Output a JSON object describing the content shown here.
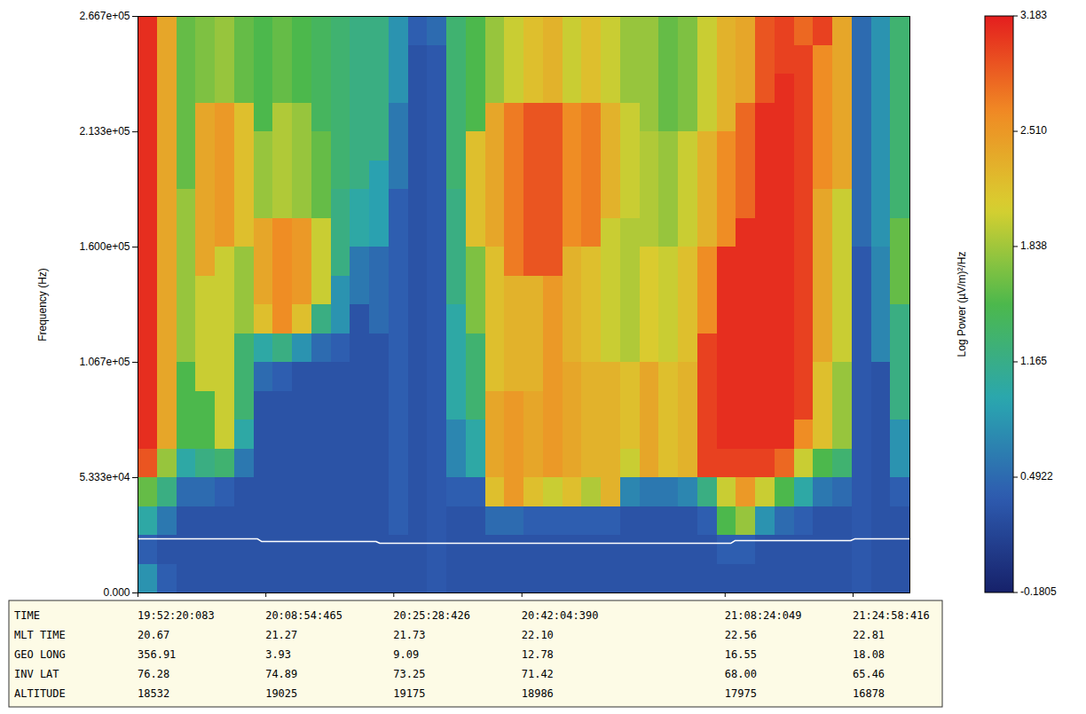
{
  "chart_data": {
    "type": "heatmap",
    "xlabel": "TIME",
    "ylabel": "Frequency (Hz)",
    "xlim": [
      71540.083,
      77540.083
    ],
    "xticks": [
      {
        "value": 71540.083,
        "label": "19:52:20:083"
      },
      {
        "value": 72534.465,
        "label": "20:08:54:465"
      },
      {
        "value": 73528.426,
        "label": "20:25:28:426"
      },
      {
        "value": 74524.39,
        "label": "20:42:04:390"
      },
      {
        "value": 76104.049,
        "label": "21:08:24:049"
      },
      {
        "value": 77098.416,
        "label": "21:24:58:416"
      }
    ],
    "xtick_rows": [
      {
        "label": "MLT TIME",
        "labels": [
          "20.67",
          "21.27",
          "21.73",
          "22.10",
          "22.56",
          "22.81"
        ]
      },
      {
        "label": "GEO LONG",
        "labels": [
          "356.91",
          "3.93",
          "9.09",
          "12.78",
          "16.55",
          "18.08"
        ]
      },
      {
        "label": "INV LAT",
        "labels": [
          "76.28",
          "74.89",
          "73.25",
          "71.42",
          "68.00",
          "65.46"
        ]
      },
      {
        "label": "ALTITUDE",
        "labels": [
          "18532",
          "19025",
          "19175",
          "18986",
          "17975",
          "16878"
        ]
      }
    ],
    "ylim": [
      0,
      266700
    ],
    "yticks": [
      {
        "value": 0,
        "label": "0.000"
      },
      {
        "value": 53330,
        "label": "5.333e+04"
      },
      {
        "value": 106700,
        "label": "1.067e+05"
      },
      {
        "value": 160000,
        "label": "1.600e+05"
      },
      {
        "value": 213300,
        "label": "2.133e+05"
      },
      {
        "value": 266700,
        "label": "2.667e+05"
      }
    ],
    "colorbar": {
      "label": "Log Power (µV/m)²/Hz",
      "range": [
        -0.1805,
        3.183
      ],
      "ticks": [
        3.183,
        {
          "value": 2.51,
          "label": "2.510"
        },
        1.838,
        1.165,
        0.4922,
        -0.1805
      ]
    },
    "line": {
      "x": [
        71540.083,
        72470,
        72500,
        73390,
        73420,
        76150,
        76180,
        77080,
        77110,
        77540.083
      ],
      "values": [
        25000,
        25000,
        23800,
        23800,
        23000,
        23000,
        24200,
        24200,
        25000,
        25000
      ],
      "color": "#ffffff"
    },
    "cells": {
      "x_bins": [
        71540.083,
        71690.083,
        71840.083,
        71990.083,
        72140.083,
        72290.083,
        72440.083,
        72590.083,
        72740.083,
        72890.083,
        73040.083,
        73190.083,
        73340.083,
        73490.083,
        73640.083,
        73790.083,
        73940.083,
        74090.083,
        74240.083,
        74390.083,
        74540.083,
        74690.083,
        74840.083,
        74990.083,
        75140.083,
        75290.083,
        75440.083,
        75590.083,
        75740.083,
        75890.083,
        76040.083,
        76190.083,
        76340.083,
        76490.083,
        76640.083,
        76790.083,
        76940.083,
        77090.083,
        77240.083,
        77390.083,
        77540.083
      ],
      "y_bins": [
        0,
        13335,
        26670,
        40005,
        53340,
        66675,
        80010,
        93345,
        106680,
        120015,
        133350,
        146685,
        160020,
        173355,
        186690,
        200025,
        213360,
        226695,
        240030,
        253365,
        266700
      ],
      "values": [
        [
          0.8,
          0.4,
          1.0,
          1.6,
          2.9,
          3.1,
          3.1,
          3.1,
          3.1,
          3.1,
          3.1,
          3.1,
          3.1,
          3.1,
          3.1,
          3.1,
          3.1,
          3.1,
          3.1,
          3.1
        ],
        [
          0.4,
          0.3,
          0.6,
          1.2,
          1.8,
          2.4,
          2.4,
          2.4,
          2.4,
          2.4,
          2.4,
          2.4,
          2.4,
          2.4,
          2.4,
          2.4,
          2.4,
          2.4,
          2.4,
          2.4
        ],
        [
          0.3,
          0.3,
          0.3,
          0.5,
          1.0,
          1.5,
          1.5,
          1.5,
          1.8,
          1.8,
          1.8,
          1.8,
          1.8,
          1.8,
          1.6,
          1.6,
          1.6,
          1.6,
          1.6,
          1.6
        ],
        [
          0.3,
          0.3,
          0.3,
          0.5,
          1.2,
          1.5,
          1.5,
          2.0,
          2.0,
          2.0,
          2.0,
          2.4,
          2.4,
          2.4,
          2.4,
          2.4,
          2.4,
          1.7,
          1.7,
          1.7
        ],
        [
          0.3,
          0.3,
          0.3,
          0.4,
          1.3,
          2.0,
          2.0,
          2.0,
          2.0,
          2.0,
          2.0,
          2.0,
          2.5,
          2.5,
          2.5,
          2.5,
          2.5,
          1.8,
          1.8,
          1.8
        ],
        [
          0.3,
          0.3,
          0.3,
          0.3,
          0.6,
          1.0,
          1.3,
          1.3,
          1.3,
          1.8,
          1.8,
          1.8,
          2.2,
          2.2,
          2.2,
          2.2,
          2.2,
          1.6,
          1.6,
          1.6
        ],
        [
          0.3,
          0.3,
          0.3,
          0.3,
          0.3,
          0.3,
          0.3,
          0.5,
          1.0,
          2.2,
          2.4,
          2.4,
          2.4,
          1.8,
          1.8,
          1.8,
          1.5,
          1.5,
          1.5,
          1.5
        ],
        [
          0.3,
          0.3,
          0.3,
          0.3,
          0.3,
          0.3,
          0.3,
          0.4,
          1.2,
          2.6,
          2.6,
          2.6,
          2.6,
          1.9,
          1.9,
          1.9,
          1.9,
          1.6,
          1.6,
          1.6
        ],
        [
          0.3,
          0.3,
          0.3,
          0.3,
          0.3,
          0.3,
          0.3,
          0.3,
          0.8,
          2.2,
          2.5,
          2.5,
          2.5,
          1.8,
          1.8,
          1.8,
          1.8,
          1.5,
          1.5,
          1.5
        ],
        [
          0.3,
          0.3,
          0.3,
          0.3,
          0.3,
          0.3,
          0.3,
          0.3,
          0.5,
          1.2,
          2.0,
          2.0,
          2.0,
          1.6,
          1.6,
          1.6,
          1.4,
          1.4,
          1.4,
          1.4
        ],
        [
          0.3,
          0.3,
          0.3,
          0.3,
          0.3,
          0.3,
          0.3,
          0.3,
          0.4,
          0.8,
          0.8,
          1.2,
          1.2,
          1.2,
          1.3,
          1.3,
          1.3,
          1.3,
          1.3,
          1.3
        ],
        [
          0.3,
          0.3,
          0.3,
          0.3,
          0.3,
          0.3,
          0.3,
          0.3,
          0.3,
          0.3,
          0.6,
          0.6,
          1.0,
          1.0,
          1.2,
          1.2,
          1.2,
          1.2,
          1.2,
          1.2
        ],
        [
          0.3,
          0.3,
          0.3,
          0.3,
          0.3,
          0.3,
          0.3,
          0.3,
          0.3,
          0.5,
          0.5,
          0.5,
          0.9,
          0.9,
          0.9,
          1.2,
          1.2,
          1.2,
          1.2,
          1.2
        ],
        [
          0.3,
          0.3,
          0.4,
          0.4,
          0.4,
          0.4,
          0.4,
          0.4,
          0.4,
          0.4,
          0.4,
          0.4,
          0.4,
          0.4,
          0.6,
          0.6,
          0.6,
          0.8,
          0.8,
          0.8
        ],
        [
          0.3,
          0.3,
          0.3,
          0.3,
          0.3,
          0.3,
          0.3,
          0.3,
          0.3,
          0.3,
          0.3,
          0.3,
          0.3,
          0.3,
          0.3,
          0.3,
          0.3,
          0.3,
          0.3,
          0.4
        ],
        [
          0.35,
          0.35,
          0.35,
          0.35,
          0.35,
          0.35,
          0.35,
          0.35,
          0.35,
          0.35,
          0.35,
          0.35,
          0.35,
          0.35,
          0.35,
          0.35,
          0.35,
          0.35,
          0.35,
          0.5
        ],
        [
          0.3,
          0.3,
          0.3,
          0.4,
          0.7,
          0.7,
          1.0,
          1.0,
          1.0,
          1.0,
          1.2,
          1.2,
          1.2,
          1.2,
          1.3,
          1.3,
          1.3,
          1.3,
          1.3,
          1.3
        ],
        [
          0.3,
          0.3,
          0.3,
          0.4,
          1.0,
          1.0,
          1.3,
          1.3,
          1.3,
          1.7,
          1.7,
          1.7,
          2.2,
          2.2,
          2.2,
          2.2,
          1.5,
          1.5,
          1.5,
          1.5
        ],
        [
          0.3,
          0.3,
          0.5,
          2.2,
          2.4,
          2.4,
          2.4,
          2.2,
          2.2,
          2.2,
          2.2,
          2.2,
          2.4,
          2.4,
          2.4,
          2.4,
          2.4,
          1.8,
          1.8,
          1.8
        ],
        [
          0.3,
          0.3,
          0.5,
          2.5,
          2.5,
          2.5,
          2.5,
          2.3,
          2.3,
          2.3,
          2.3,
          2.7,
          2.7,
          2.7,
          2.7,
          2.7,
          2.7,
          2.0,
          2.0,
          2.0
        ],
        [
          0.3,
          0.3,
          0.4,
          2.2,
          2.4,
          2.4,
          2.4,
          2.3,
          2.3,
          2.3,
          2.3,
          2.9,
          2.9,
          2.9,
          2.9,
          2.9,
          2.9,
          2.2,
          2.2,
          2.2
        ],
        [
          0.3,
          0.3,
          0.4,
          2.0,
          2.5,
          2.5,
          2.5,
          2.5,
          2.5,
          2.5,
          2.5,
          2.9,
          2.9,
          2.9,
          2.9,
          2.9,
          2.9,
          2.3,
          2.3,
          2.3
        ],
        [
          0.3,
          0.3,
          0.4,
          2.2,
          2.4,
          2.4,
          2.4,
          2.4,
          2.3,
          2.3,
          2.3,
          2.3,
          2.6,
          2.6,
          2.6,
          2.6,
          2.6,
          2.0,
          2.0,
          2.0
        ],
        [
          0.3,
          0.3,
          0.4,
          1.9,
          2.3,
          2.3,
          2.3,
          2.3,
          2.2,
          2.2,
          2.2,
          2.2,
          2.7,
          2.7,
          2.7,
          2.7,
          2.7,
          2.2,
          2.2,
          2.2
        ],
        [
          0.3,
          0.3,
          0.4,
          2.3,
          2.3,
          2.3,
          2.3,
          2.3,
          2.0,
          2.0,
          2.0,
          2.0,
          2.0,
          2.3,
          2.3,
          2.3,
          2.3,
          2.0,
          2.0,
          2.0
        ],
        [
          0.3,
          0.3,
          0.3,
          0.7,
          2.0,
          2.2,
          2.2,
          2.2,
          1.9,
          1.9,
          1.9,
          1.9,
          1.9,
          2.0,
          2.0,
          2.0,
          2.0,
          1.8,
          1.8,
          1.8
        ],
        [
          0.3,
          0.3,
          0.3,
          0.6,
          2.4,
          2.4,
          2.4,
          2.4,
          2.1,
          2.1,
          2.1,
          2.1,
          1.9,
          1.9,
          1.9,
          1.9,
          1.8,
          1.8,
          1.8,
          1.8
        ],
        [
          0.3,
          0.3,
          0.3,
          0.6,
          2.2,
          2.2,
          2.2,
          2.2,
          2.0,
          2.0,
          2.0,
          2.0,
          1.8,
          1.8,
          1.8,
          1.8,
          1.6,
          1.6,
          1.6,
          1.6
        ],
        [
          0.3,
          0.3,
          0.3,
          0.7,
          2.3,
          2.3,
          2.3,
          2.3,
          2.2,
          2.2,
          2.2,
          2.2,
          2.0,
          2.0,
          2.0,
          2.0,
          1.7,
          1.7,
          1.7,
          1.7
        ],
        [
          0.3,
          0.3,
          0.4,
          1.2,
          3.0,
          3.0,
          3.0,
          3.0,
          3.0,
          2.6,
          2.6,
          2.6,
          2.3,
          2.3,
          2.3,
          2.3,
          2.0,
          2.0,
          2.0,
          2.0
        ],
        [
          0.3,
          0.4,
          1.5,
          2.0,
          3.0,
          3.1,
          3.1,
          3.1,
          3.1,
          3.1,
          3.1,
          3.1,
          2.6,
          2.6,
          2.6,
          2.6,
          2.3,
          2.3,
          2.3,
          2.3
        ],
        [
          0.3,
          0.4,
          1.8,
          2.5,
          3.0,
          3.1,
          3.1,
          3.1,
          3.1,
          3.1,
          3.1,
          3.1,
          3.1,
          2.8,
          2.8,
          2.8,
          2.8,
          2.4,
          2.4,
          2.4
        ],
        [
          0.3,
          0.3,
          0.8,
          2.0,
          3.0,
          3.1,
          3.1,
          3.1,
          3.1,
          3.1,
          3.1,
          3.1,
          3.1,
          3.1,
          3.1,
          3.1,
          3.1,
          2.9,
          2.9,
          2.9
        ],
        [
          0.3,
          0.3,
          0.5,
          1.5,
          2.8,
          3.1,
          3.1,
          3.1,
          3.1,
          3.1,
          3.1,
          3.1,
          3.1,
          3.1,
          3.1,
          3.1,
          3.1,
          3.1,
          3.0,
          3.0
        ],
        [
          0.3,
          0.3,
          0.4,
          1.0,
          2.0,
          2.6,
          3.0,
          3.0,
          3.0,
          3.0,
          3.0,
          3.0,
          3.0,
          3.0,
          3.0,
          3.0,
          3.0,
          3.0,
          3.0,
          2.8
        ],
        [
          0.3,
          0.3,
          0.3,
          0.6,
          1.5,
          2.2,
          2.2,
          2.2,
          2.4,
          2.4,
          2.4,
          2.4,
          2.4,
          2.4,
          2.6,
          2.6,
          2.6,
          2.6,
          2.6,
          3.0
        ],
        [
          0.3,
          0.3,
          0.3,
          0.5,
          1.3,
          1.8,
          1.8,
          1.8,
          2.0,
          2.0,
          2.0,
          2.0,
          2.0,
          2.0,
          2.4,
          2.4,
          2.4,
          2.4,
          2.4,
          2.4
        ],
        [
          0.35,
          0.35,
          0.35,
          0.35,
          0.35,
          0.35,
          0.35,
          0.35,
          0.35,
          0.35,
          0.35,
          0.35,
          0.5,
          0.5,
          0.5,
          0.5,
          0.5,
          0.5,
          0.5,
          0.5
        ],
        [
          0.3,
          0.3,
          0.3,
          0.3,
          0.3,
          0.3,
          0.3,
          0.3,
          0.7,
          0.7,
          0.7,
          0.7,
          0.8,
          0.8,
          0.8,
          0.8,
          0.8,
          0.8,
          0.8,
          0.8
        ],
        [
          0.3,
          0.3,
          0.3,
          0.4,
          0.8,
          0.8,
          1.2,
          1.2,
          1.2,
          1.2,
          1.6,
          1.6,
          1.6,
          1.3,
          1.3,
          1.3,
          1.3,
          1.3,
          1.3,
          1.3
        ]
      ]
    }
  }
}
